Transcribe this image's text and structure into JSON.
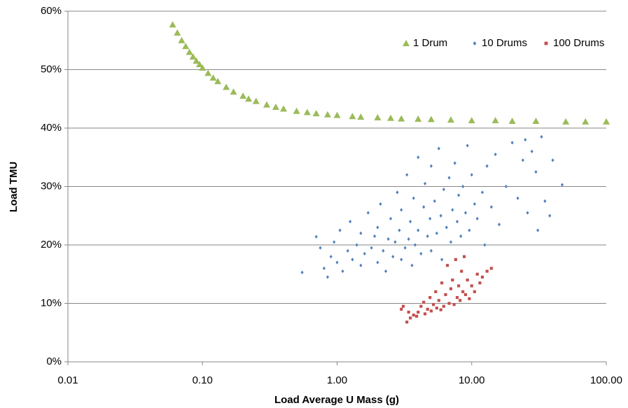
{
  "chart_data": {
    "type": "scatter",
    "x_label": "Load Average U Mass (g)",
    "y_label": "Load TMU",
    "log_x": true,
    "grid": true,
    "legend": "upper right",
    "xlim": [
      0.01,
      100
    ],
    "xticks": [
      0.01,
      {
        "value": 0.1,
        "label": "0.10"
      },
      {
        "value": 1,
        "label": "1.00"
      },
      {
        "value": 10,
        "label": "10.00"
      },
      {
        "value": 100,
        "label": "100.00"
      }
    ],
    "ylim": [
      0,
      60
    ],
    "yticks": [
      {
        "value": 0,
        "label": "0%"
      },
      {
        "value": 10,
        "label": "10%"
      },
      {
        "value": 20,
        "label": "20%"
      },
      {
        "value": 30,
        "label": "30%"
      },
      {
        "value": 40,
        "label": "40%"
      },
      {
        "value": 50,
        "label": "50%"
      },
      {
        "value": 60,
        "label": "60%"
      }
    ],
    "series": [
      {
        "name": "1 Drum",
        "color": "#9bbb59",
        "marker": "triangle",
        "x": [
          0.06,
          0.065,
          0.07,
          0.075,
          0.08,
          0.085,
          0.09,
          0.095,
          0.1,
          0.11,
          0.12,
          0.13,
          0.15,
          0.17,
          0.2,
          0.22,
          0.25,
          0.3,
          0.35,
          0.4,
          0.5,
          0.6,
          0.7,
          0.85,
          1,
          1.3,
          1.5,
          2,
          2.5,
          3,
          4,
          5,
          7,
          10,
          15,
          20,
          30,
          50,
          70,
          100
        ],
        "values": [
          57.7,
          56.3,
          55.0,
          54.0,
          53.0,
          52.2,
          51.5,
          50.9,
          50.3,
          49.4,
          48.6,
          48.0,
          47.0,
          46.2,
          45.5,
          45.0,
          44.6,
          44.0,
          43.6,
          43.3,
          42.9,
          42.7,
          42.5,
          42.3,
          42.2,
          42.0,
          41.9,
          41.8,
          41.7,
          41.6,
          41.55,
          41.5,
          41.4,
          41.3,
          41.3,
          41.2,
          41.2,
          41.1,
          41.1,
          41.1
        ]
      },
      {
        "name": "10 Drums",
        "color": "#4f81bd",
        "marker": "diamond",
        "x": [
          0.55,
          0.7,
          0.75,
          0.8,
          0.85,
          0.9,
          0.95,
          1.0,
          1.05,
          1.1,
          1.2,
          1.25,
          1.3,
          1.4,
          1.5,
          1.5,
          1.6,
          1.7,
          1.8,
          1.9,
          2.0,
          2.0,
          2.1,
          2.2,
          2.3,
          2.4,
          2.5,
          2.6,
          2.7,
          2.8,
          2.9,
          3.0,
          3.0,
          3.2,
          3.3,
          3.4,
          3.5,
          3.6,
          3.7,
          3.8,
          4.0,
          4.0,
          4.2,
          4.4,
          4.5,
          4.7,
          4.9,
          5.0,
          5.0,
          5.3,
          5.5,
          5.7,
          5.9,
          6.0,
          6.2,
          6.5,
          6.8,
          7.0,
          7.2,
          7.5,
          7.8,
          8.0,
          8.3,
          8.6,
          9.0,
          9.3,
          9.6,
          10,
          10.5,
          11,
          12,
          12.5,
          13,
          14,
          15,
          16,
          18,
          20,
          22,
          24,
          25,
          26,
          28,
          30,
          31,
          33,
          35,
          38,
          40,
          47
        ],
        "values": [
          15.3,
          21.4,
          19.5,
          16.0,
          14.5,
          18.0,
          20.5,
          17.0,
          22.5,
          15.5,
          19.0,
          24.0,
          17.5,
          20.0,
          16.5,
          22.0,
          18.5,
          25.5,
          19.5,
          21.5,
          17.0,
          23.0,
          27.0,
          19.0,
          15.5,
          21.0,
          24.5,
          18.0,
          20.5,
          29.0,
          22.5,
          17.5,
          26.0,
          19.5,
          32.0,
          21.0,
          24.0,
          16.5,
          28.0,
          20.0,
          22.5,
          35.0,
          18.5,
          26.5,
          30.5,
          21.5,
          24.5,
          19.0,
          33.5,
          27.5,
          22.0,
          36.5,
          25.0,
          17.5,
          29.5,
          23.0,
          31.5,
          20.5,
          26.0,
          34.0,
          24.0,
          28.5,
          21.5,
          30.0,
          25.5,
          37.0,
          22.5,
          32.0,
          27.0,
          24.5,
          29.0,
          20.0,
          33.5,
          26.5,
          35.5,
          23.5,
          30.0,
          37.5,
          28.0,
          34.5,
          38.0,
          25.5,
          36.0,
          32.5,
          22.5,
          38.5,
          27.5,
          25.0,
          34.5,
          30.3
        ]
      },
      {
        "name": "100 Drums",
        "color": "#c0504d",
        "marker": "square",
        "x": [
          3.0,
          3.1,
          3.3,
          3.4,
          3.5,
          3.7,
          3.9,
          4.0,
          4.2,
          4.4,
          4.5,
          4.7,
          4.9,
          5.0,
          5.2,
          5.4,
          5.5,
          5.7,
          5.9,
          6.0,
          6.2,
          6.4,
          6.6,
          6.8,
          7.0,
          7.2,
          7.4,
          7.6,
          7.8,
          8.0,
          8.2,
          8.4,
          8.6,
          8.8,
          9.0,
          9.3,
          9.6,
          10,
          10.5,
          11,
          11.5,
          12,
          13,
          14
        ],
        "values": [
          9.0,
          9.5,
          6.8,
          8.5,
          7.5,
          8.0,
          7.8,
          8.5,
          9.5,
          10.2,
          8.2,
          9.0,
          11.0,
          8.7,
          9.8,
          12.0,
          9.2,
          10.5,
          8.9,
          13.5,
          9.5,
          11.5,
          16.5,
          10.0,
          12.5,
          14.0,
          9.8,
          17.5,
          11.0,
          13.0,
          10.5,
          15.5,
          12.0,
          18.0,
          11.5,
          14.0,
          10.8,
          13.0,
          12.0,
          15.0,
          13.5,
          14.5,
          15.5,
          16.0
        ]
      }
    ]
  }
}
